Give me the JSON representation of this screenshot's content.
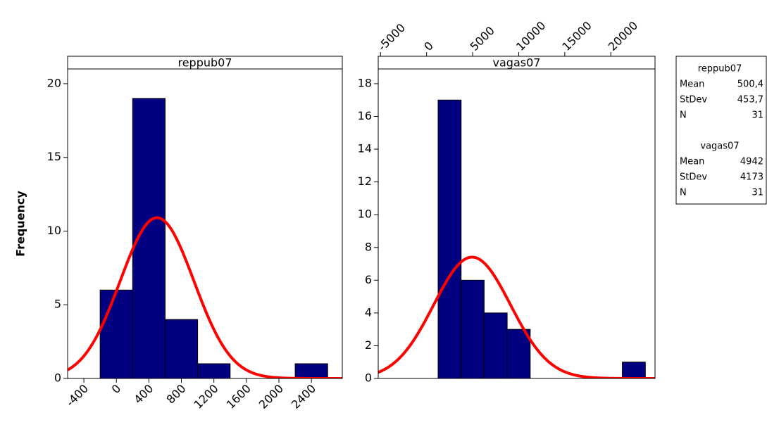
{
  "chart_data": [
    {
      "type": "histogram",
      "title": "reppub07",
      "ylabel": "Frequency",
      "x_axis_side": "bottom",
      "bins": [
        -200,
        200,
        600,
        1000,
        1400,
        1800,
        2200,
        2600
      ],
      "values": [
        6,
        19,
        4,
        1,
        0,
        0,
        1
      ],
      "color": "#000080",
      "fit_color": "#ff0000",
      "xlim": [
        -600,
        2780
      ],
      "xticks": [
        -400,
        0,
        400,
        800,
        1200,
        1600,
        2000,
        2400
      ],
      "ylim": [
        0,
        21
      ],
      "yticks": [
        0,
        5,
        10,
        15,
        20
      ]
    },
    {
      "type": "histogram",
      "title": "vagas07",
      "x_axis_side": "top",
      "bins": [
        1250,
        3750,
        6250,
        8750,
        11250,
        13750,
        16250,
        18750,
        21250,
        23750
      ],
      "values": [
        17,
        6,
        4,
        3,
        0,
        0,
        0,
        0,
        1
      ],
      "color": "#000080",
      "fit_color": "#ff0000",
      "xlim": [
        -5250,
        24800
      ],
      "xticks": [
        -5000,
        0,
        5000,
        10000,
        15000,
        20000
      ],
      "ylim": [
        0,
        18.9
      ],
      "yticks": [
        0,
        2,
        4,
        6,
        8,
        10,
        12,
        14,
        16,
        18
      ]
    }
  ],
  "stats_box": [
    {
      "title": "reppub07",
      "rows": [
        {
          "label": "Mean",
          "value": 500.4,
          "value_label": "500,4"
        },
        {
          "label": "StDev",
          "value": 453.7,
          "value_label": "453,7"
        },
        {
          "label": "N",
          "value": 31
        }
      ]
    },
    {
      "title": "vagas07",
      "rows": [
        {
          "label": "Mean",
          "value": 4942
        },
        {
          "label": "StDev",
          "value": 4173
        },
        {
          "label": "N",
          "value": 31
        }
      ]
    }
  ]
}
